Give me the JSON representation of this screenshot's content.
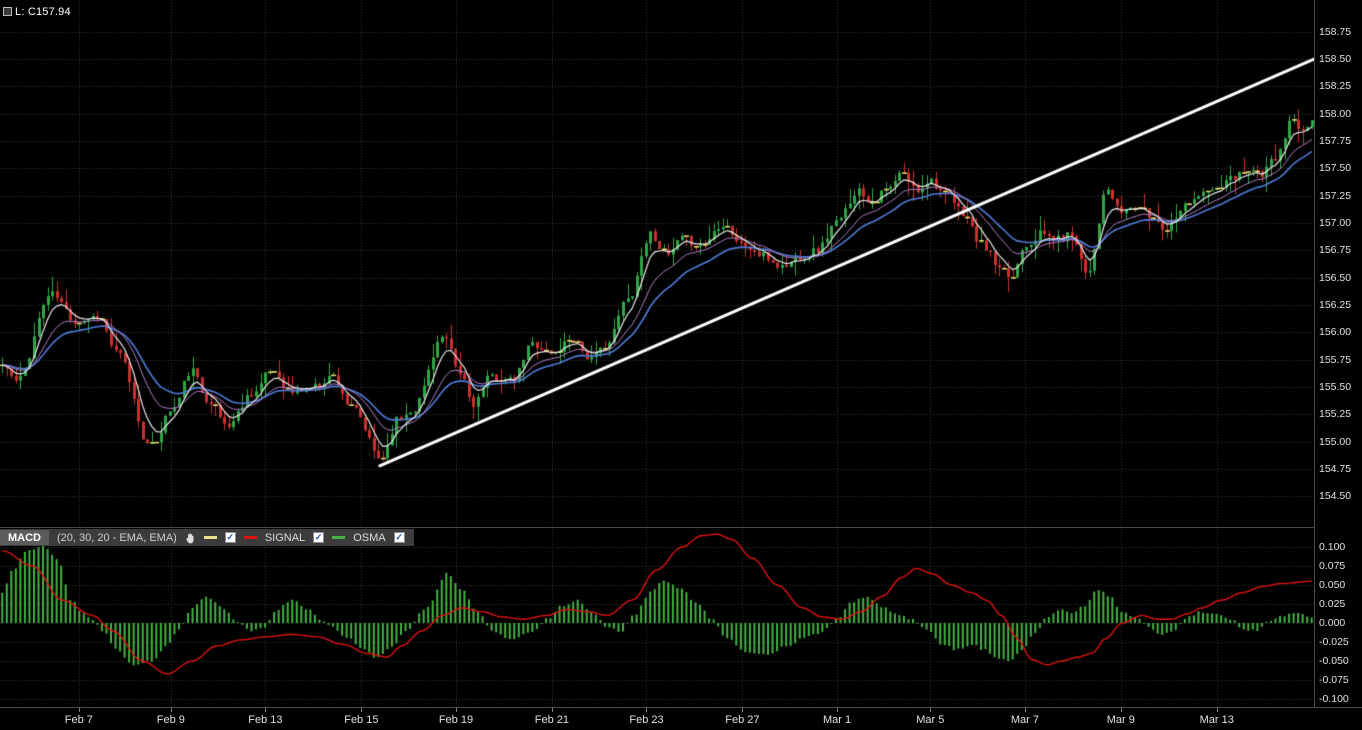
{
  "price_panel": {
    "last_label": "L: C157.94"
  },
  "macd_header": {
    "name": "MACD",
    "params": "(20, 30, 20 - EMA, EMA)",
    "signal_label": "SIGNAL",
    "osma_label": "OSMA",
    "checkbox_glyph": "✓"
  },
  "colors": {
    "background": "#000000",
    "grid": "#3a3a3a",
    "axis_text": "#e0e0e0",
    "up": "#2fa546",
    "down": "#c8312f",
    "doji_tick": "#e6d96a",
    "ema_fast": "#e8e8e8",
    "ema_mid": "#b07cc6",
    "ema_slow": "#4f7bd9",
    "trendline": "#ffffff",
    "signal": "#e01212",
    "osma": "#44b244",
    "macd_line": "#e8e28a",
    "header_bg": "#3c3c3c",
    "separator": "#4a4a4a"
  },
  "chart_data": [
    {
      "type": "candlestick",
      "title": "Price panel with EMA overlays and ascending trendline",
      "last_close": 157.94,
      "ylim": [
        154.22,
        159.04
      ],
      "y_ticks": [
        158.75,
        158.5,
        158.25,
        158.0,
        157.75,
        157.5,
        157.25,
        157.0,
        156.75,
        156.5,
        156.25,
        156.0,
        155.75,
        155.5,
        155.25,
        155.0,
        154.75,
        154.5
      ],
      "x_ticks": [
        [
          "Feb 7",
          0.06
        ],
        [
          "Feb 9",
          0.13
        ],
        [
          "Feb 13",
          0.202
        ],
        [
          "Feb 15",
          0.275
        ],
        [
          "Feb 19",
          0.347
        ],
        [
          "Feb 21",
          0.42
        ],
        [
          "Feb 23",
          0.492
        ],
        [
          "Feb 27",
          0.565
        ],
        [
          "Mar 1",
          0.637
        ],
        [
          "Mar 5",
          0.708
        ],
        [
          "Mar 7",
          0.78
        ],
        [
          "Mar 9",
          0.853
        ],
        [
          "Mar 13",
          0.926
        ]
      ],
      "bars": 290,
      "render": {
        "noise": 0.04,
        "wick": 0.14,
        "seed": 11,
        "doji_threshold": 0.012
      },
      "emas": [
        {
          "period": 5
        },
        {
          "period": 12
        },
        {
          "period": 20
        }
      ],
      "trendline": {
        "x1": 0.289,
        "price1": 154.78,
        "x2": 1.0,
        "price2": 158.5
      },
      "close_anchors": [
        [
          0.0,
          155.7
        ],
        [
          0.011,
          155.55
        ],
        [
          0.037,
          156.35
        ],
        [
          0.057,
          156.1
        ],
        [
          0.073,
          156.15
        ],
        [
          0.088,
          155.8
        ],
        [
          0.113,
          154.95
        ],
        [
          0.13,
          155.3
        ],
        [
          0.144,
          155.65
        ],
        [
          0.156,
          155.4
        ],
        [
          0.172,
          155.15
        ],
        [
          0.191,
          155.45
        ],
        [
          0.206,
          155.65
        ],
        [
          0.221,
          155.45
        ],
        [
          0.237,
          155.5
        ],
        [
          0.252,
          155.6
        ],
        [
          0.267,
          155.3
        ],
        [
          0.289,
          154.85
        ],
        [
          0.302,
          155.2
        ],
        [
          0.313,
          155.3
        ],
        [
          0.336,
          155.95
        ],
        [
          0.351,
          155.6
        ],
        [
          0.359,
          155.35
        ],
        [
          0.374,
          155.6
        ],
        [
          0.389,
          155.55
        ],
        [
          0.405,
          155.9
        ],
        [
          0.42,
          155.8
        ],
        [
          0.435,
          155.95
        ],
        [
          0.45,
          155.75
        ],
        [
          0.462,
          155.9
        ],
        [
          0.477,
          156.3
        ],
        [
          0.495,
          156.9
        ],
        [
          0.508,
          156.7
        ],
        [
          0.519,
          156.85
        ],
        [
          0.534,
          156.8
        ],
        [
          0.55,
          157.0
        ],
        [
          0.565,
          156.8
        ],
        [
          0.58,
          156.7
        ],
        [
          0.595,
          156.6
        ],
        [
          0.611,
          156.7
        ],
        [
          0.622,
          156.75
        ],
        [
          0.637,
          157.0
        ],
        [
          0.653,
          157.3
        ],
        [
          0.664,
          157.2
        ],
        [
          0.676,
          157.3
        ],
        [
          0.687,
          157.45
        ],
        [
          0.698,
          157.3
        ],
        [
          0.708,
          157.4
        ],
        [
          0.721,
          157.25
        ],
        [
          0.733,
          157.1
        ],
        [
          0.748,
          156.8
        ],
        [
          0.763,
          156.55
        ],
        [
          0.771,
          156.5
        ],
        [
          0.78,
          156.8
        ],
        [
          0.794,
          156.9
        ],
        [
          0.805,
          156.85
        ],
        [
          0.817,
          156.9
        ],
        [
          0.828,
          156.55
        ],
        [
          0.844,
          157.3
        ],
        [
          0.853,
          157.1
        ],
        [
          0.866,
          157.15
        ],
        [
          0.878,
          157.05
        ],
        [
          0.889,
          156.95
        ],
        [
          0.901,
          157.15
        ],
        [
          0.912,
          157.25
        ],
        [
          0.926,
          157.3
        ],
        [
          0.939,
          157.4
        ],
        [
          0.95,
          157.5
        ],
        [
          0.962,
          157.45
        ],
        [
          0.973,
          157.6
        ],
        [
          0.985,
          157.95
        ],
        [
          0.992,
          157.8
        ],
        [
          1.0,
          157.94
        ]
      ]
    },
    {
      "type": "bar",
      "name": "MACD (20, 30, 20 - EMA, EMA)",
      "legend": [
        "MACD",
        "SIGNAL",
        "OSMA"
      ],
      "ylim": [
        -0.1105,
        0.1237
      ],
      "y_ticks": [
        0.1,
        0.075,
        0.05,
        0.025,
        0.0,
        -0.025,
        -0.05,
        -0.075,
        -0.1
      ],
      "osma_anchors": [
        [
          0.0,
          0.04
        ],
        [
          0.008,
          0.07
        ],
        [
          0.019,
          0.095
        ],
        [
          0.031,
          0.102
        ],
        [
          0.042,
          0.085
        ],
        [
          0.053,
          0.03
        ],
        [
          0.061,
          0.012
        ],
        [
          0.069,
          0.005
        ],
        [
          0.076,
          -0.01
        ],
        [
          0.088,
          -0.035
        ],
        [
          0.099,
          -0.055
        ],
        [
          0.115,
          -0.05
        ],
        [
          0.126,
          -0.03
        ],
        [
          0.134,
          -0.01
        ],
        [
          0.145,
          0.02
        ],
        [
          0.156,
          0.035
        ],
        [
          0.168,
          0.02
        ],
        [
          0.179,
          0.002
        ],
        [
          0.191,
          -0.01
        ],
        [
          0.2,
          -0.005
        ],
        [
          0.21,
          0.018
        ],
        [
          0.221,
          0.03
        ],
        [
          0.233,
          0.018
        ],
        [
          0.243,
          0.004
        ],
        [
          0.252,
          -0.006
        ],
        [
          0.263,
          -0.018
        ],
        [
          0.275,
          -0.035
        ],
        [
          0.286,
          -0.046
        ],
        [
          0.298,
          -0.03
        ],
        [
          0.307,
          -0.012
        ],
        [
          0.324,
          0.02
        ],
        [
          0.34,
          0.065
        ],
        [
          0.351,
          0.045
        ],
        [
          0.363,
          0.015
        ],
        [
          0.374,
          -0.01
        ],
        [
          0.389,
          -0.022
        ],
        [
          0.405,
          -0.012
        ],
        [
          0.416,
          0.005
        ],
        [
          0.427,
          0.022
        ],
        [
          0.439,
          0.03
        ],
        [
          0.45,
          0.015
        ],
        [
          0.462,
          -0.005
        ],
        [
          0.472,
          -0.012
        ],
        [
          0.482,
          0.01
        ],
        [
          0.495,
          0.04
        ],
        [
          0.505,
          0.055
        ],
        [
          0.518,
          0.045
        ],
        [
          0.531,
          0.025
        ],
        [
          0.542,
          0.005
        ],
        [
          0.553,
          -0.02
        ],
        [
          0.569,
          -0.04
        ],
        [
          0.584,
          -0.042
        ],
        [
          0.599,
          -0.03
        ],
        [
          0.615,
          -0.018
        ],
        [
          0.626,
          -0.012
        ],
        [
          0.637,
          0.005
        ],
        [
          0.649,
          0.028
        ],
        [
          0.66,
          0.035
        ],
        [
          0.672,
          0.022
        ],
        [
          0.683,
          0.012
        ],
        [
          0.695,
          0.005
        ],
        [
          0.706,
          -0.01
        ],
        [
          0.718,
          -0.028
        ],
        [
          0.729,
          -0.035
        ],
        [
          0.74,
          -0.028
        ],
        [
          0.75,
          -0.035
        ],
        [
          0.76,
          -0.048
        ],
        [
          0.769,
          -0.05
        ],
        [
          0.779,
          -0.035
        ],
        [
          0.788,
          -0.015
        ],
        [
          0.798,
          0.008
        ],
        [
          0.808,
          0.018
        ],
        [
          0.817,
          0.012
        ],
        [
          0.826,
          0.022
        ],
        [
          0.836,
          0.045
        ],
        [
          0.846,
          0.035
        ],
        [
          0.855,
          0.015
        ],
        [
          0.866,
          0.008
        ],
        [
          0.876,
          -0.005
        ],
        [
          0.885,
          -0.015
        ],
        [
          0.895,
          -0.01
        ],
        [
          0.905,
          0.008
        ],
        [
          0.916,
          0.015
        ],
        [
          0.927,
          0.012
        ],
        [
          0.939,
          0.004
        ],
        [
          0.948,
          -0.008
        ],
        [
          0.958,
          -0.01
        ],
        [
          0.968,
          0.004
        ],
        [
          0.977,
          0.01
        ],
        [
          0.989,
          0.012
        ],
        [
          1.0,
          0.008
        ]
      ],
      "signal_anchors": [
        [
          0.0,
          0.095
        ],
        [
          0.023,
          0.075
        ],
        [
          0.046,
          0.03
        ],
        [
          0.069,
          0.01
        ],
        [
          0.084,
          -0.01
        ],
        [
          0.107,
          -0.05
        ],
        [
          0.126,
          -0.067
        ],
        [
          0.145,
          -0.05
        ],
        [
          0.164,
          -0.03
        ],
        [
          0.183,
          -0.022
        ],
        [
          0.202,
          -0.018
        ],
        [
          0.221,
          -0.015
        ],
        [
          0.24,
          -0.018
        ],
        [
          0.26,
          -0.028
        ],
        [
          0.279,
          -0.04
        ],
        [
          0.294,
          -0.045
        ],
        [
          0.305,
          -0.03
        ],
        [
          0.321,
          -0.01
        ],
        [
          0.336,
          0.01
        ],
        [
          0.351,
          0.02
        ],
        [
          0.366,
          0.015
        ],
        [
          0.382,
          0.008
        ],
        [
          0.397,
          0.005
        ],
        [
          0.416,
          0.01
        ],
        [
          0.431,
          0.018
        ],
        [
          0.447,
          0.015
        ],
        [
          0.462,
          0.01
        ],
        [
          0.481,
          0.03
        ],
        [
          0.5,
          0.07
        ],
        [
          0.519,
          0.1
        ],
        [
          0.534,
          0.115
        ],
        [
          0.546,
          0.117
        ],
        [
          0.557,
          0.11
        ],
        [
          0.573,
          0.085
        ],
        [
          0.592,
          0.05
        ],
        [
          0.611,
          0.02
        ],
        [
          0.626,
          0.008
        ],
        [
          0.641,
          0.005
        ],
        [
          0.656,
          0.015
        ],
        [
          0.672,
          0.035
        ],
        [
          0.687,
          0.06
        ],
        [
          0.698,
          0.072
        ],
        [
          0.71,
          0.065
        ],
        [
          0.725,
          0.05
        ],
        [
          0.74,
          0.04
        ],
        [
          0.752,
          0.03
        ],
        [
          0.763,
          0.01
        ],
        [
          0.775,
          -0.02
        ],
        [
          0.786,
          -0.048
        ],
        [
          0.798,
          -0.055
        ],
        [
          0.809,
          -0.05
        ],
        [
          0.821,
          -0.045
        ],
        [
          0.832,
          -0.04
        ],
        [
          0.843,
          -0.02
        ],
        [
          0.855,
          0.0
        ],
        [
          0.87,
          0.01
        ],
        [
          0.882,
          0.005
        ],
        [
          0.893,
          0.005
        ],
        [
          0.905,
          0.012
        ],
        [
          0.916,
          0.02
        ],
        [
          0.931,
          0.03
        ],
        [
          0.947,
          0.04
        ],
        [
          0.962,
          0.048
        ],
        [
          0.977,
          0.052
        ],
        [
          1.0,
          0.055
        ]
      ]
    }
  ]
}
